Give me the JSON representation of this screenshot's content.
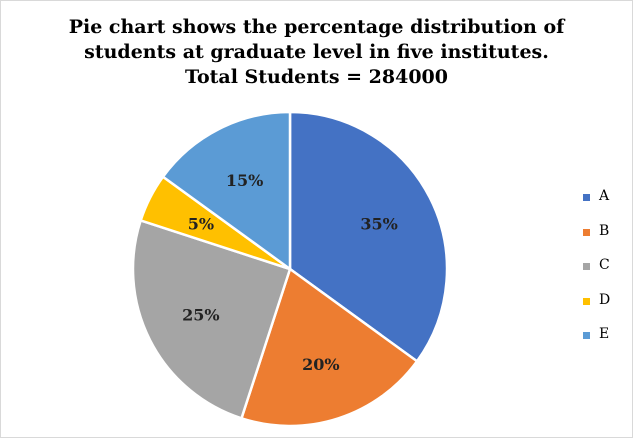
{
  "chart_data": {
    "type": "pie",
    "title_lines": [
      "Pie chart shows the percentage distribution of",
      "students at graduate level in five institutes.",
      "Total Students = 284000"
    ],
    "categories": [
      "A",
      "B",
      "C",
      "D",
      "E"
    ],
    "values": [
      35,
      20,
      25,
      5,
      15
    ],
    "labels": [
      "35%",
      "20%",
      "25%",
      "5%",
      "15%"
    ],
    "colors": [
      "#4472C4",
      "#ED7D31",
      "#A5A5A5",
      "#FFC000",
      "#5B9BD5"
    ],
    "start_angle": "12 o'clock",
    "direction": "clockwise",
    "legend_position": "right"
  }
}
